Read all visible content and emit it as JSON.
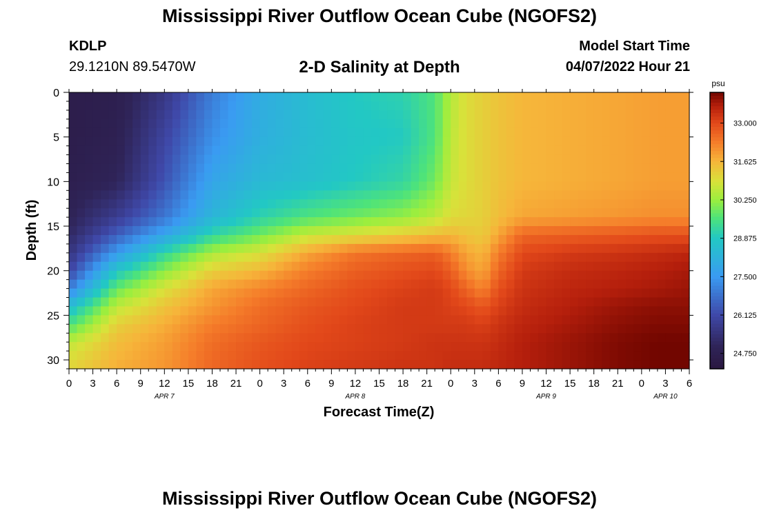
{
  "header": {
    "title": "Mississippi River Outflow Ocean Cube (NGOFS2)",
    "station": "KDLP",
    "coords": "29.1210N  89.5470W",
    "subtitle": "2-D Salinity at Depth",
    "start_label": "Model Start Time",
    "start_value": "04/07/2022 Hour 21"
  },
  "footer": {
    "title": "Mississippi River Outflow Ocean Cube (NGOFS2)"
  },
  "chart_data": {
    "type": "heatmap",
    "title": "2-D Salinity at Depth",
    "xlabel": "Forecast Time(Z)",
    "ylabel": "Depth (ft)",
    "x_range_hours": [
      0,
      78
    ],
    "y_range_ft": [
      0,
      31
    ],
    "y_reversed": true,
    "x_tick_labels": [
      "0",
      "3",
      "6",
      "9",
      "12",
      "15",
      "18",
      "21",
      "0",
      "3",
      "6",
      "9",
      "12",
      "15",
      "18",
      "21",
      "0",
      "3",
      "6",
      "9",
      "12",
      "15",
      "18",
      "21",
      "0",
      "3",
      "6"
    ],
    "x_tick_step_hours": 3,
    "date_labels": [
      {
        "label": "APR 7",
        "hour": 12
      },
      {
        "label": "APR 8",
        "hour": 36
      },
      {
        "label": "APR 9",
        "hour": 60
      },
      {
        "label": "APR 10",
        "hour": 75
      }
    ],
    "y_ticks": [
      0,
      5,
      10,
      15,
      20,
      25,
      30
    ],
    "colorbar": {
      "unit": "psu",
      "min": 24.2,
      "max": 34.1,
      "tick_values": [
        24.75,
        26.125,
        27.5,
        28.875,
        30.25,
        31.625,
        33.0
      ],
      "tick_labels": [
        "24.750",
        "26.125",
        "27.500",
        "28.875",
        "30.250",
        "31.625",
        "33.000"
      ]
    },
    "salinity_profiles": [
      {
        "hour": 0,
        "depth": [
          0,
          5,
          10,
          15,
          18,
          20,
          22,
          24,
          26,
          28,
          30,
          31
        ],
        "psu": [
          24.6,
          24.6,
          24.7,
          25.0,
          25.5,
          26.0,
          27.0,
          28.5,
          29.5,
          30.6,
          31.0,
          31.1
        ]
      },
      {
        "hour": 6,
        "depth": [
          0,
          5,
          10,
          14,
          16,
          18,
          20,
          22,
          24,
          26,
          28,
          31
        ],
        "psu": [
          24.7,
          24.8,
          25.0,
          25.8,
          26.5,
          27.5,
          28.8,
          29.8,
          30.6,
          31.2,
          31.5,
          31.7
        ]
      },
      {
        "hour": 12,
        "depth": [
          0,
          5,
          10,
          14,
          16,
          18,
          20,
          22,
          24,
          26,
          28,
          31
        ],
        "psu": [
          25.6,
          26.0,
          26.3,
          26.9,
          27.8,
          29.2,
          30.1,
          30.9,
          31.4,
          31.7,
          31.9,
          32.0
        ]
      },
      {
        "hour": 18,
        "depth": [
          0,
          5,
          10,
          14,
          16,
          18,
          20,
          22,
          24,
          26,
          28,
          31
        ],
        "psu": [
          27.0,
          27.3,
          27.8,
          28.3,
          29.2,
          30.4,
          31.2,
          31.8,
          32.0,
          32.3,
          32.5,
          32.6
        ]
      },
      {
        "hour": 24,
        "depth": [
          0,
          5,
          10,
          14,
          16,
          18,
          20,
          22,
          24,
          26,
          28,
          31
        ],
        "psu": [
          28.0,
          28.1,
          28.4,
          29.1,
          29.9,
          30.9,
          31.6,
          32.2,
          32.5,
          32.6,
          32.8,
          32.9
        ]
      },
      {
        "hour": 30,
        "depth": [
          0,
          5,
          10,
          14,
          16,
          18,
          20,
          22,
          24,
          26,
          28,
          31
        ],
        "psu": [
          28.5,
          28.5,
          28.6,
          29.6,
          30.7,
          31.8,
          32.3,
          32.6,
          32.8,
          32.9,
          33.0,
          33.1
        ]
      },
      {
        "hour": 36,
        "depth": [
          0,
          5,
          10,
          14,
          16,
          18,
          20,
          22,
          24,
          26,
          28,
          31
        ],
        "psu": [
          28.9,
          28.8,
          28.9,
          29.9,
          31.0,
          32.4,
          32.7,
          32.9,
          33.0,
          33.1,
          33.1,
          33.2
        ]
      },
      {
        "hour": 42,
        "depth": [
          0,
          5,
          10,
          14,
          16,
          18,
          20,
          22,
          24,
          26,
          28,
          31
        ],
        "psu": [
          29.1,
          28.9,
          29.2,
          30.2,
          31.3,
          32.6,
          32.9,
          33.1,
          33.2,
          33.2,
          33.2,
          33.3
        ]
      },
      {
        "hour": 46,
        "depth": [
          0,
          5,
          10,
          14,
          16,
          18,
          20,
          22,
          24,
          26,
          28,
          31
        ],
        "psu": [
          29.6,
          29.6,
          29.9,
          30.6,
          31.5,
          32.7,
          33.0,
          33.2,
          33.2,
          33.2,
          33.3,
          33.3
        ]
      },
      {
        "hour": 48,
        "depth": [
          0,
          5,
          10,
          14,
          16,
          18,
          20,
          22,
          24,
          26,
          28,
          31
        ],
        "psu": [
          30.5,
          30.6,
          30.7,
          31.0,
          31.6,
          32.3,
          32.7,
          33.0,
          33.1,
          33.2,
          33.3,
          33.4
        ]
      },
      {
        "hour": 50,
        "depth": [
          0,
          5,
          10,
          14,
          16,
          18,
          20,
          22,
          24,
          26,
          28,
          31
        ],
        "psu": [
          31.0,
          31.0,
          31.0,
          31.1,
          31.4,
          31.8,
          32.1,
          32.6,
          33.0,
          33.2,
          33.3,
          33.4
        ]
      },
      {
        "hour": 52,
        "depth": [
          0,
          5,
          10,
          14,
          16,
          18,
          20,
          22,
          24,
          26,
          28,
          31
        ],
        "psu": [
          31.2,
          31.2,
          31.2,
          31.2,
          31.3,
          31.6,
          31.8,
          32.2,
          32.8,
          33.1,
          33.3,
          33.4
        ]
      },
      {
        "hour": 54,
        "depth": [
          0,
          5,
          10,
          14,
          16,
          18,
          20,
          22,
          24,
          26,
          28,
          31
        ],
        "psu": [
          31.4,
          31.4,
          31.4,
          31.5,
          31.8,
          32.3,
          32.6,
          32.9,
          33.1,
          33.3,
          33.4,
          33.5
        ]
      },
      {
        "hour": 57,
        "depth": [
          0,
          5,
          10,
          14,
          16,
          18,
          20,
          22,
          24,
          26,
          28,
          31
        ],
        "psu": [
          31.6,
          31.6,
          31.6,
          31.8,
          32.6,
          33.0,
          33.2,
          33.3,
          33.4,
          33.5,
          33.6,
          33.6
        ]
      },
      {
        "hour": 63,
        "depth": [
          0,
          5,
          10,
          14,
          16,
          18,
          20,
          22,
          24,
          26,
          28,
          31
        ],
        "psu": [
          31.7,
          31.7,
          31.7,
          31.9,
          32.7,
          33.2,
          33.4,
          33.5,
          33.6,
          33.7,
          33.8,
          33.8
        ]
      },
      {
        "hour": 69,
        "depth": [
          0,
          5,
          10,
          14,
          16,
          18,
          20,
          22,
          24,
          26,
          28,
          31
        ],
        "psu": [
          31.8,
          31.8,
          31.8,
          32.0,
          32.8,
          33.3,
          33.5,
          33.6,
          33.8,
          33.9,
          34.0,
          34.0
        ]
      },
      {
        "hour": 74,
        "depth": [
          0,
          5,
          10,
          14,
          16,
          18,
          20,
          22,
          24,
          26,
          28,
          31
        ],
        "psu": [
          31.9,
          31.9,
          31.9,
          32.1,
          32.9,
          33.4,
          33.6,
          33.7,
          33.9,
          34.0,
          34.1,
          34.1
        ]
      },
      {
        "hour": 78,
        "depth": [
          0,
          5,
          10,
          14,
          16,
          18,
          20,
          22,
          24,
          26,
          28,
          31
        ],
        "psu": [
          31.9,
          31.9,
          31.9,
          32.1,
          32.9,
          33.5,
          33.7,
          33.8,
          33.9,
          34.0,
          34.1,
          34.1
        ]
      }
    ],
    "colormap_stops": [
      {
        "psu": 24.2,
        "color": "#2a1740"
      },
      {
        "psu": 25.0,
        "color": "#2f2458"
      },
      {
        "psu": 26.125,
        "color": "#3f48a8"
      },
      {
        "psu": 27.5,
        "color": "#3a9bf2"
      },
      {
        "psu": 28.875,
        "color": "#22c8c4"
      },
      {
        "psu": 29.6,
        "color": "#4ee37a"
      },
      {
        "psu": 30.25,
        "color": "#9cee3e"
      },
      {
        "psu": 30.9,
        "color": "#d8e23a"
      },
      {
        "psu": 31.625,
        "color": "#f6b53a"
      },
      {
        "psu": 32.3,
        "color": "#f57d2a"
      },
      {
        "psu": 33.0,
        "color": "#e2481a"
      },
      {
        "psu": 33.6,
        "color": "#b51f0c"
      },
      {
        "psu": 34.1,
        "color": "#720600"
      }
    ]
  }
}
